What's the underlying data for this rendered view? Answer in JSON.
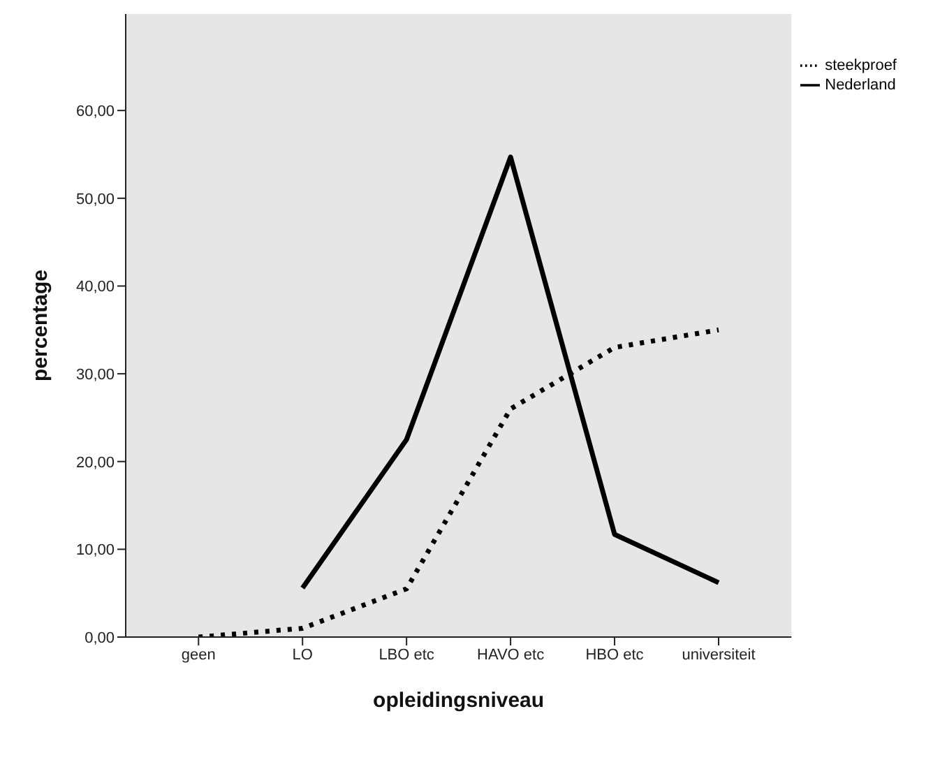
{
  "chart_data": {
    "type": "line",
    "xlabel": "opleidingsniveau",
    "ylabel": "percentage",
    "categories": [
      "geen",
      "LO",
      "LBO etc",
      "HAVO etc",
      "HBO etc",
      "universiteit"
    ],
    "series": [
      {
        "name": "steekproef",
        "color": "#000000",
        "line_style": "dotted",
        "values": [
          0,
          1,
          5.5,
          26,
          33,
          35
        ]
      },
      {
        "name": "Nederland",
        "color": "#000000",
        "line_style": "solid",
        "values": [
          null,
          5.6,
          22.5,
          54.7,
          11.7,
          6.2
        ]
      }
    ],
    "ylim": [
      0,
      71
    ],
    "yticks": [
      {
        "value": 0,
        "label": "0,00"
      },
      {
        "value": 10,
        "label": "10,00"
      },
      {
        "value": 20,
        "label": "20,00"
      },
      {
        "value": 30,
        "label": "30,00"
      },
      {
        "value": 40,
        "label": "40,00"
      },
      {
        "value": 50,
        "label": "50,00"
      },
      {
        "value": 60,
        "label": "60,00"
      }
    ],
    "grid": false,
    "legend": "top right",
    "marker": "none"
  }
}
